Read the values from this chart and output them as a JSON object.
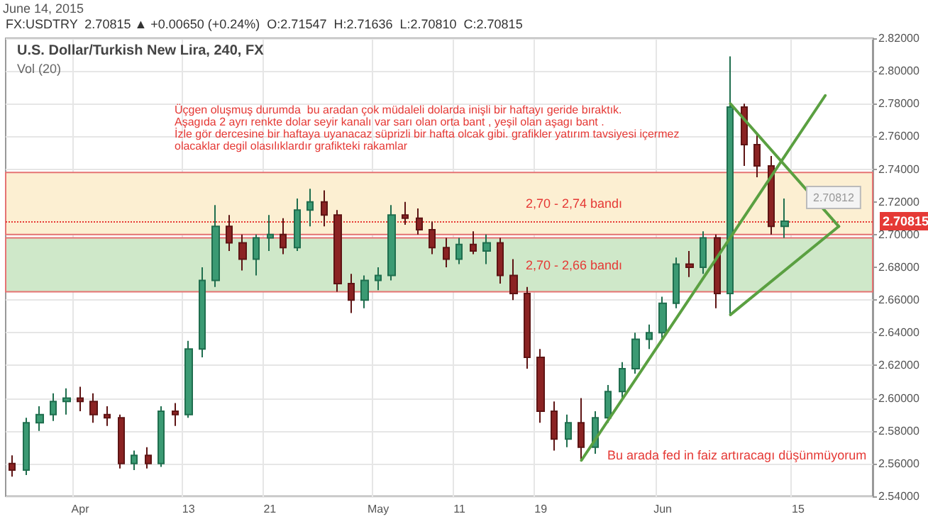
{
  "chart_data": {
    "type": "candlestick",
    "title": "U.S. Dollar/Turkish New Lira, 240, FX",
    "subtitle": "Vol (20)",
    "categories": [
      null,
      null,
      null,
      null,
      null,
      "Apr",
      null,
      null,
      null,
      null,
      null,
      null,
      null,
      "13",
      null,
      null,
      null,
      null,
      null,
      "21",
      null,
      null,
      null,
      null,
      null,
      null,
      null,
      "May",
      null,
      null,
      null,
      null,
      null,
      "11",
      null,
      null,
      null,
      null,
      null,
      "19",
      null,
      null,
      null,
      null,
      null,
      null,
      null,
      null,
      "Jun",
      null,
      null,
      null,
      null,
      null,
      null,
      null,
      null,
      null,
      "15",
      null,
      null,
      null,
      null,
      null
    ],
    "ohlc": [
      [
        2.56,
        2.565,
        2.552,
        2.556
      ],
      [
        2.556,
        2.588,
        2.553,
        2.585
      ],
      [
        2.585,
        2.595,
        2.58,
        2.59
      ],
      [
        2.59,
        2.603,
        2.586,
        2.598
      ],
      [
        2.598,
        2.606,
        2.59,
        2.6
      ],
      [
        2.6,
        2.607,
        2.592,
        2.598
      ],
      [
        2.598,
        2.603,
        2.585,
        2.59
      ],
      [
        2.59,
        2.595,
        2.583,
        2.588
      ],
      [
        2.588,
        2.59,
        2.557,
        2.56
      ],
      [
        2.56,
        2.568,
        2.556,
        2.565
      ],
      [
        2.565,
        2.57,
        2.557,
        2.56
      ],
      [
        2.56,
        2.595,
        2.558,
        2.592
      ],
      [
        2.592,
        2.597,
        2.583,
        2.59
      ],
      [
        2.59,
        2.635,
        2.588,
        2.63
      ],
      [
        2.63,
        2.68,
        2.625,
        2.672
      ],
      [
        2.672,
        2.718,
        2.668,
        2.705
      ],
      [
        2.705,
        2.712,
        2.69,
        2.695
      ],
      [
        2.695,
        2.7,
        2.678,
        2.685
      ],
      [
        2.685,
        2.7,
        2.675,
        2.698
      ],
      [
        2.698,
        2.712,
        2.69,
        2.7
      ],
      [
        2.7,
        2.71,
        2.688,
        2.692
      ],
      [
        2.692,
        2.722,
        2.69,
        2.715
      ],
      [
        2.715,
        2.728,
        2.705,
        2.72
      ],
      [
        2.72,
        2.727,
        2.705,
        2.712
      ],
      [
        2.712,
        2.715,
        2.665,
        2.67
      ],
      [
        2.67,
        2.676,
        2.652,
        2.66
      ],
      [
        2.66,
        2.675,
        2.655,
        2.672
      ],
      [
        2.672,
        2.68,
        2.666,
        2.675
      ],
      [
        2.675,
        2.718,
        2.672,
        2.712
      ],
      [
        2.712,
        2.72,
        2.706,
        2.71
      ],
      [
        2.71,
        2.716,
        2.7,
        2.703
      ],
      [
        2.703,
        2.708,
        2.688,
        2.692
      ],
      [
        2.692,
        2.698,
        2.68,
        2.685
      ],
      [
        2.685,
        2.698,
        2.682,
        2.694
      ],
      [
        2.694,
        2.702,
        2.688,
        2.69
      ],
      [
        2.69,
        2.7,
        2.682,
        2.695
      ],
      [
        2.695,
        2.698,
        2.67,
        2.675
      ],
      [
        2.675,
        2.685,
        2.66,
        2.664
      ],
      [
        2.664,
        2.668,
        2.618,
        2.625
      ],
      [
        2.625,
        2.63,
        2.585,
        2.592
      ],
      [
        2.592,
        2.598,
        2.568,
        2.575
      ],
      [
        2.575,
        2.59,
        2.57,
        2.585
      ],
      [
        2.585,
        2.6,
        2.562,
        2.57
      ],
      [
        2.57,
        2.592,
        2.566,
        2.588
      ],
      [
        2.588,
        2.608,
        2.585,
        2.604
      ],
      [
        2.604,
        2.622,
        2.6,
        2.618
      ],
      [
        2.618,
        2.64,
        2.615,
        2.636
      ],
      [
        2.636,
        2.645,
        2.63,
        2.64
      ],
      [
        2.64,
        2.662,
        2.636,
        2.658
      ],
      [
        2.658,
        2.686,
        2.655,
        2.682
      ],
      [
        2.682,
        2.69,
        2.674,
        2.68
      ],
      [
        2.68,
        2.702,
        2.676,
        2.698
      ],
      [
        2.698,
        2.7,
        2.655,
        2.664
      ],
      [
        2.664,
        2.809,
        2.651,
        2.778
      ],
      [
        2.778,
        2.78,
        2.742,
        2.755
      ],
      [
        2.755,
        2.762,
        2.735,
        2.742
      ],
      [
        2.742,
        2.748,
        2.7,
        2.705
      ],
      [
        2.705,
        2.722,
        2.698,
        2.70815
      ],
      null,
      null,
      null,
      null,
      null,
      null
    ],
    "series": [
      {
        "type": "line",
        "color": "#5aa041",
        "values": [
          null,
          null,
          null,
          null,
          null,
          null,
          null,
          null,
          null,
          null,
          null,
          null,
          null,
          null,
          null,
          null,
          null,
          null,
          null,
          null,
          null,
          null,
          null,
          null,
          null,
          null,
          null,
          null,
          null,
          null,
          null,
          null,
          null,
          null,
          null,
          null,
          null,
          null,
          null,
          null,
          null,
          null,
          2.562,
          null,
          null,
          null,
          null,
          null,
          null,
          null,
          null,
          null,
          null,
          null,
          null,
          null,
          null,
          null,
          null,
          null,
          2.785,
          null,
          null,
          null
        ]
      },
      {
        "type": "line",
        "color": "#5aa041",
        "values": [
          null,
          null,
          null,
          null,
          null,
          null,
          null,
          null,
          null,
          null,
          null,
          null,
          null,
          null,
          null,
          null,
          null,
          null,
          null,
          null,
          null,
          null,
          null,
          null,
          null,
          null,
          null,
          null,
          null,
          null,
          null,
          null,
          null,
          null,
          null,
          null,
          null,
          null,
          null,
          null,
          null,
          null,
          null,
          null,
          null,
          null,
          null,
          null,
          null,
          null,
          null,
          null,
          null,
          2.78,
          null,
          null,
          null,
          null,
          null,
          null,
          null,
          2.705,
          null,
          null
        ]
      },
      {
        "type": "line",
        "color": "#5aa041",
        "values": [
          null,
          null,
          null,
          null,
          null,
          null,
          null,
          null,
          null,
          null,
          null,
          null,
          null,
          null,
          null,
          null,
          null,
          null,
          null,
          null,
          null,
          null,
          null,
          null,
          null,
          null,
          null,
          null,
          null,
          null,
          null,
          null,
          null,
          null,
          null,
          null,
          null,
          null,
          null,
          null,
          null,
          null,
          null,
          null,
          null,
          null,
          null,
          null,
          null,
          null,
          null,
          null,
          null,
          2.651,
          null,
          null,
          null,
          null,
          null,
          null,
          null,
          2.705,
          null,
          null
        ]
      }
    ],
    "ylim": [
      2.54,
      2.82
    ],
    "yticks": [
      {
        "value": 2.54,
        "label": "2.54000"
      },
      {
        "value": 2.56,
        "label": "2.56000"
      },
      {
        "value": 2.58,
        "label": "2.58000"
      },
      {
        "value": 2.6,
        "label": "2.60000"
      },
      {
        "value": 2.62,
        "label": "2.62000"
      },
      {
        "value": 2.64,
        "label": "2.64000"
      },
      {
        "value": 2.66,
        "label": "2.66000"
      },
      {
        "value": 2.68,
        "label": "2.68000"
      },
      {
        "value": 2.7,
        "label": "2.70000"
      },
      {
        "value": 2.72,
        "label": "2.72000"
      },
      {
        "value": 2.74,
        "label": "2.74000"
      },
      {
        "value": 2.76,
        "label": "2.76000"
      },
      {
        "value": 2.78,
        "label": "2.78000"
      },
      {
        "value": 2.8,
        "label": "2.80000"
      },
      {
        "value": 2.82,
        "label": "2.82000"
      }
    ],
    "grid": true,
    "marker": "none",
    "ref_lines": [
      {
        "axis": "y",
        "value": 2.70815,
        "label": "2.70815",
        "color": "#e53935",
        "line_style": "dotted"
      }
    ],
    "bands": [
      {
        "axis": "y",
        "from": 2.7,
        "to": 2.738,
        "label": "2,70 - 2,74 bandı",
        "color": "#fcefd2"
      },
      {
        "axis": "y",
        "from": 2.665,
        "to": 2.698,
        "label": "2,70 - 2,66 bandı",
        "color": "#cfe8c9"
      }
    ],
    "annotations": [
      "June 14, 2015",
      "FX:USDTRY  2.70815 ▲ +0.00650 (+0.24%)  O:2.71547  H:2.71636  L:2.70810  C:2.70815",
      "Üçgen oluşmuş durumda  bu aradan çok müdaleli dolarda inişli bir haftayı geride bıraktık.\nAşagıda 2 ayrı renkte dolar seyir kanalı var sarı olan orta bant , yeşil olan aşagı bant .\nİzle gör dercesine bir haftaya uyanacaz süprizli bir hafta olcak gibi. grafikler yatırım tavsiyesi içermez\nolacaklar degil olasılıklardır grafikteki rakamlar",
      "Bu arada fed in faiz artıracagı düşünmüyorum",
      "2.70812"
    ]
  }
}
